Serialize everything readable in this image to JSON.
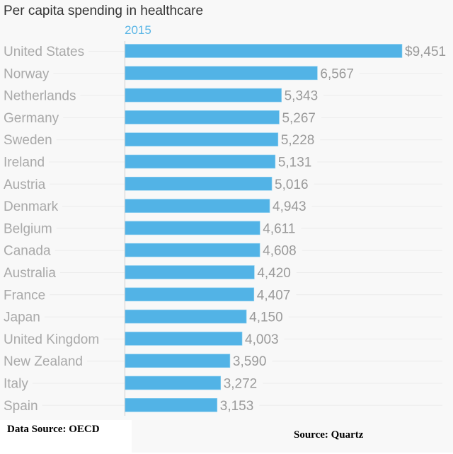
{
  "chart_data": {
    "type": "bar",
    "orientation": "horizontal",
    "title": "Per capita spending in healthcare",
    "series_label": "2015",
    "categories": [
      "United States",
      "Norway",
      "Netherlands",
      "Germany",
      "Sweden",
      "Ireland",
      "Austria",
      "Denmark",
      "Belgium",
      "Canada",
      "Australia",
      "France",
      "Japan",
      "United Kingdom",
      "New Zealand",
      "Italy",
      "Spain"
    ],
    "values": [
      9451,
      6567,
      5343,
      5267,
      5228,
      5131,
      5016,
      4943,
      4611,
      4608,
      4420,
      4407,
      4150,
      4003,
      3590,
      3272,
      3153
    ],
    "value_labels": [
      "$9,451",
      "6,567",
      "5,343",
      "5,267",
      "5,228",
      "5,131",
      "5,016",
      "4,943",
      "4,611",
      "4,608",
      "4,420",
      "4,407",
      "4,150",
      "4,003",
      "3,590",
      "3,272",
      "3,153"
    ],
    "xlim": [
      0,
      9451
    ],
    "colors": {
      "bar": "#52b3e6",
      "series_label": "#5ab6e6",
      "label": "#a9a9a9",
      "title": "#333333"
    }
  },
  "footer": {
    "data_source": "Data Source:  OECD",
    "source": "Source:  Quartz"
  }
}
